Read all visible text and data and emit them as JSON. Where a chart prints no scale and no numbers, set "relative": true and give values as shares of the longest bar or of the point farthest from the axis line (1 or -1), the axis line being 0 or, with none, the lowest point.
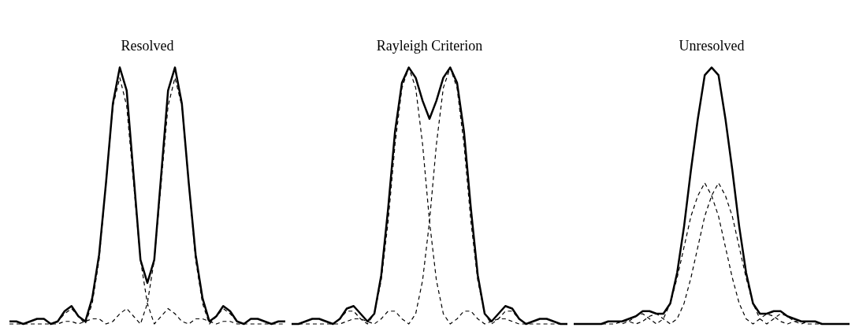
{
  "chart_data": [
    {
      "type": "line",
      "title": "Resolved",
      "relative": true,
      "marker": "none",
      "categories": [
        null,
        null,
        null,
        null,
        null,
        null,
        null,
        null,
        null,
        null,
        null,
        null,
        null,
        null,
        null,
        null,
        null,
        null,
        null,
        null,
        null,
        null,
        null,
        null,
        null,
        null,
        null,
        null,
        null,
        null,
        null,
        null,
        null,
        null,
        null,
        null,
        null,
        null,
        null,
        null,
        null
      ],
      "series": [
        {
          "color": "#000000",
          "line_style": "solid",
          "values": [
            0.01,
            0.01,
            0.0,
            0.01,
            0.02,
            0.02,
            0.0,
            0.01,
            0.05,
            0.07,
            0.03,
            0.01,
            0.1,
            0.27,
            0.55,
            0.86,
            1.0,
            0.91,
            0.58,
            0.25,
            0.16,
            0.25,
            0.58,
            0.91,
            1.0,
            0.86,
            0.55,
            0.27,
            0.1,
            0.01,
            0.03,
            0.07,
            0.05,
            0.01,
            0.0,
            0.02,
            0.02,
            0.01,
            0.0,
            0.01,
            0.01
          ]
        },
        {
          "color": "#000000",
          "line_style": "dashed",
          "values": [
            0.01,
            0.01,
            0.0,
            0.01,
            0.02,
            0.02,
            0.0,
            0.01,
            0.04,
            0.06,
            0.03,
            0.0,
            0.08,
            0.25,
            0.55,
            0.85,
            0.96,
            0.85,
            0.55,
            0.25,
            0.08,
            0.0,
            0.03,
            0.06,
            0.04,
            0.01,
            0.0,
            0.02,
            0.02,
            0.01,
            0.0,
            0.01,
            0.01,
            0.0,
            0.0,
            0.0,
            0.0,
            0.0,
            0.0,
            0.0,
            0.0
          ]
        },
        {
          "color": "#000000",
          "line_style": "dashed",
          "values": [
            0.0,
            0.0,
            0.0,
            0.0,
            0.0,
            0.0,
            0.0,
            0.0,
            0.01,
            0.01,
            0.0,
            0.01,
            0.02,
            0.02,
            0.0,
            0.01,
            0.04,
            0.06,
            0.03,
            0.0,
            0.08,
            0.25,
            0.55,
            0.85,
            0.96,
            0.85,
            0.55,
            0.25,
            0.08,
            0.0,
            0.03,
            0.06,
            0.04,
            0.01,
            0.0,
            0.02,
            0.02,
            0.01,
            0.0,
            0.01,
            0.01
          ]
        }
      ]
    },
    {
      "type": "line",
      "title": "Rayleigh Criterion",
      "relative": true,
      "marker": "none",
      "categories": [
        null,
        null,
        null,
        null,
        null,
        null,
        null,
        null,
        null,
        null,
        null,
        null,
        null,
        null,
        null,
        null,
        null,
        null,
        null,
        null,
        null,
        null,
        null,
        null,
        null,
        null,
        null,
        null,
        null,
        null,
        null,
        null,
        null,
        null,
        null,
        null,
        null,
        null,
        null,
        null,
        null
      ],
      "series": [
        {
          "color": "#000000",
          "line_style": "solid",
          "values": [
            0,
            0,
            0.01,
            0.02,
            0.02,
            0.01,
            0,
            0.02,
            0.06,
            0.07,
            0.04,
            0.01,
            0.04,
            0.19,
            0.45,
            0.75,
            0.94,
            1.0,
            0.96,
            0.87,
            0.8,
            0.87,
            0.96,
            1.0,
            0.94,
            0.75,
            0.45,
            0.19,
            0.04,
            0.01,
            0.04,
            0.07,
            0.06,
            0.02,
            0.0,
            0.01,
            0.02,
            0.02,
            0.01,
            0,
            0
          ]
        },
        {
          "color": "#000000",
          "line_style": "dashed",
          "values": [
            0,
            0,
            0.01,
            0.02,
            0.02,
            0.01,
            0,
            0.02,
            0.05,
            0.05,
            0.02,
            0,
            0.04,
            0.17,
            0.4,
            0.7,
            0.92,
            1.0,
            0.92,
            0.7,
            0.4,
            0.17,
            0.04,
            0,
            0.02,
            0.05,
            0.05,
            0.02,
            0,
            0.01,
            0.02,
            0.02,
            0.01,
            0,
            0,
            0,
            0,
            0,
            0,
            0,
            0
          ]
        },
        {
          "color": "#000000",
          "line_style": "dashed",
          "values": [
            0,
            0,
            0,
            0,
            0,
            0,
            0,
            0,
            0.01,
            0.02,
            0.02,
            0.01,
            0,
            0.02,
            0.05,
            0.05,
            0.02,
            0,
            0.04,
            0.17,
            0.4,
            0.7,
            0.92,
            1.0,
            0.92,
            0.7,
            0.4,
            0.17,
            0.04,
            0,
            0.02,
            0.05,
            0.05,
            0.02,
            0,
            0.01,
            0.02,
            0.02,
            0.01,
            0,
            0
          ]
        }
      ]
    },
    {
      "type": "line",
      "title": "Unresolved",
      "relative": true,
      "marker": "none",
      "categories": [
        null,
        null,
        null,
        null,
        null,
        null,
        null,
        null,
        null,
        null,
        null,
        null,
        null,
        null,
        null,
        null,
        null,
        null,
        null,
        null,
        null,
        null,
        null,
        null,
        null,
        null,
        null,
        null,
        null,
        null,
        null,
        null,
        null,
        null,
        null,
        null,
        null,
        null,
        null,
        null,
        null
      ],
      "series": [
        {
          "color": "#000000",
          "line_style": "solid",
          "values": [
            0,
            0,
            0,
            0,
            0,
            0.01,
            0.01,
            0.01,
            0.02,
            0.03,
            0.05,
            0.05,
            0.04,
            0.04,
            0.08,
            0.2,
            0.38,
            0.6,
            0.8,
            0.97,
            1.0,
            0.97,
            0.8,
            0.6,
            0.38,
            0.2,
            0.08,
            0.04,
            0.04,
            0.05,
            0.05,
            0.03,
            0.02,
            0.01,
            0.01,
            0.01,
            0,
            0,
            0,
            0,
            0
          ]
        },
        {
          "color": "#000000",
          "line_style": "dashed",
          "values": [
            0,
            0,
            0,
            0,
            0,
            0.01,
            0.01,
            0,
            0.01,
            0.03,
            0.04,
            0.02,
            0,
            0.02,
            0.08,
            0.18,
            0.3,
            0.42,
            0.5,
            0.55,
            0.5,
            0.42,
            0.3,
            0.18,
            0.08,
            0.02,
            0,
            0.02,
            0.04,
            0.03,
            0.01,
            0,
            0.01,
            0.01,
            0,
            0,
            0,
            0,
            0,
            0,
            0
          ]
        },
        {
          "color": "#000000",
          "line_style": "dashed",
          "values": [
            0,
            0,
            0,
            0,
            0,
            0,
            0,
            0.01,
            0.01,
            0,
            0.01,
            0.03,
            0.04,
            0.02,
            0,
            0.02,
            0.08,
            0.18,
            0.3,
            0.42,
            0.5,
            0.55,
            0.5,
            0.42,
            0.3,
            0.18,
            0.08,
            0.02,
            0,
            0.02,
            0.04,
            0.03,
            0.01,
            0,
            0.01,
            0.01,
            0,
            0,
            0,
            0,
            0
          ]
        }
      ]
    }
  ]
}
